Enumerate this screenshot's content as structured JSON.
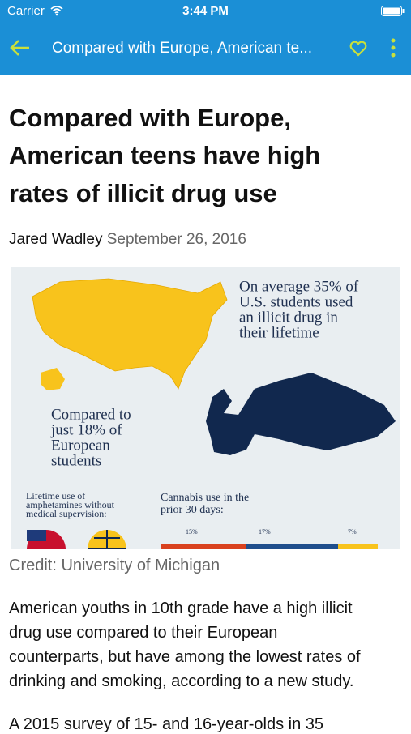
{
  "status_bar": {
    "carrier": "Carrier",
    "time": "3:44 PM"
  },
  "nav_bar": {
    "title": "Compared with Europe, American te..."
  },
  "article": {
    "title_lines": [
      "Compared with Europe,",
      "American teens have high",
      "rates of illicit drug use"
    ],
    "author": "Jared Wadley",
    "date": "September 26, 2016",
    "infographic": {
      "us_text": [
        "On average 35% of",
        "U.S. students used",
        "an illicit drug in",
        "their lifetime"
      ],
      "europe_text": [
        "Compared to",
        "just 18% of",
        "European",
        "students"
      ],
      "amphetamines_text": [
        "Lifetime use of",
        "amphetamines without",
        "medical supervision:"
      ],
      "cannabis_text": [
        "Cannabis use in the",
        "prior 30 days:"
      ],
      "cannabis_labels": [
        "15%",
        "17%",
        "7%"
      ]
    },
    "credit": "Credit: University of Michigan",
    "paragraphs": [
      [
        "American youths in 10th grade have a high illicit",
        "drug use compared to their European",
        "counterparts, but have among the lowest rates of",
        "drinking and smoking, according to a new study."
      ],
      [
        "A 2015 survey of 15- and 16-year-olds in 35"
      ]
    ]
  }
}
